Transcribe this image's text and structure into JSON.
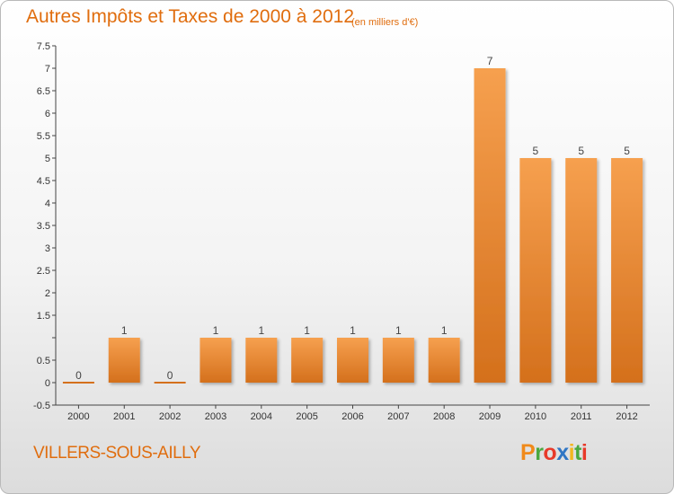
{
  "header": {
    "title": "Autres Impôts et Taxes de 2000 à 2012",
    "unit": "(en milliers d'€)"
  },
  "place": "VILLERS-SOUS-AILLY",
  "logo": {
    "letters": [
      "P",
      "r",
      "o",
      "x",
      "i",
      "t",
      "i"
    ],
    "colors": [
      "#f08a1b",
      "#4aa83e",
      "#e83a2a",
      "#2f76c4",
      "#f3b61f",
      "#4aa83e",
      "#e83a2a"
    ]
  },
  "chart_data": {
    "type": "bar",
    "title": "Autres Impôts et Taxes de 2000 à 2012",
    "categories": [
      "2000",
      "2001",
      "2002",
      "2003",
      "2004",
      "2005",
      "2006",
      "2007",
      "2008",
      "2009",
      "2010",
      "2011",
      "2012"
    ],
    "values": [
      0,
      1,
      0,
      1,
      1,
      1,
      1,
      1,
      1,
      7,
      5,
      5,
      5
    ],
    "data_labels": [
      "0",
      "1",
      "0",
      "1",
      "1",
      "1",
      "1",
      "1",
      "1",
      "7",
      "5",
      "5",
      "5"
    ],
    "yticks": [
      "-0.5",
      "0",
      "0.5",
      "",
      "1.5",
      "2",
      "2.5",
      "3",
      "3.5",
      "4",
      "4.5",
      "5",
      "5.5",
      "6",
      "6.5",
      "7",
      "7.5"
    ],
    "ylim": [
      -0.5,
      7.5
    ],
    "grid": false,
    "colors": {
      "bar_light": "#f6a04f",
      "bar_dark": "#d4701c",
      "text": "#e06d0e"
    }
  }
}
